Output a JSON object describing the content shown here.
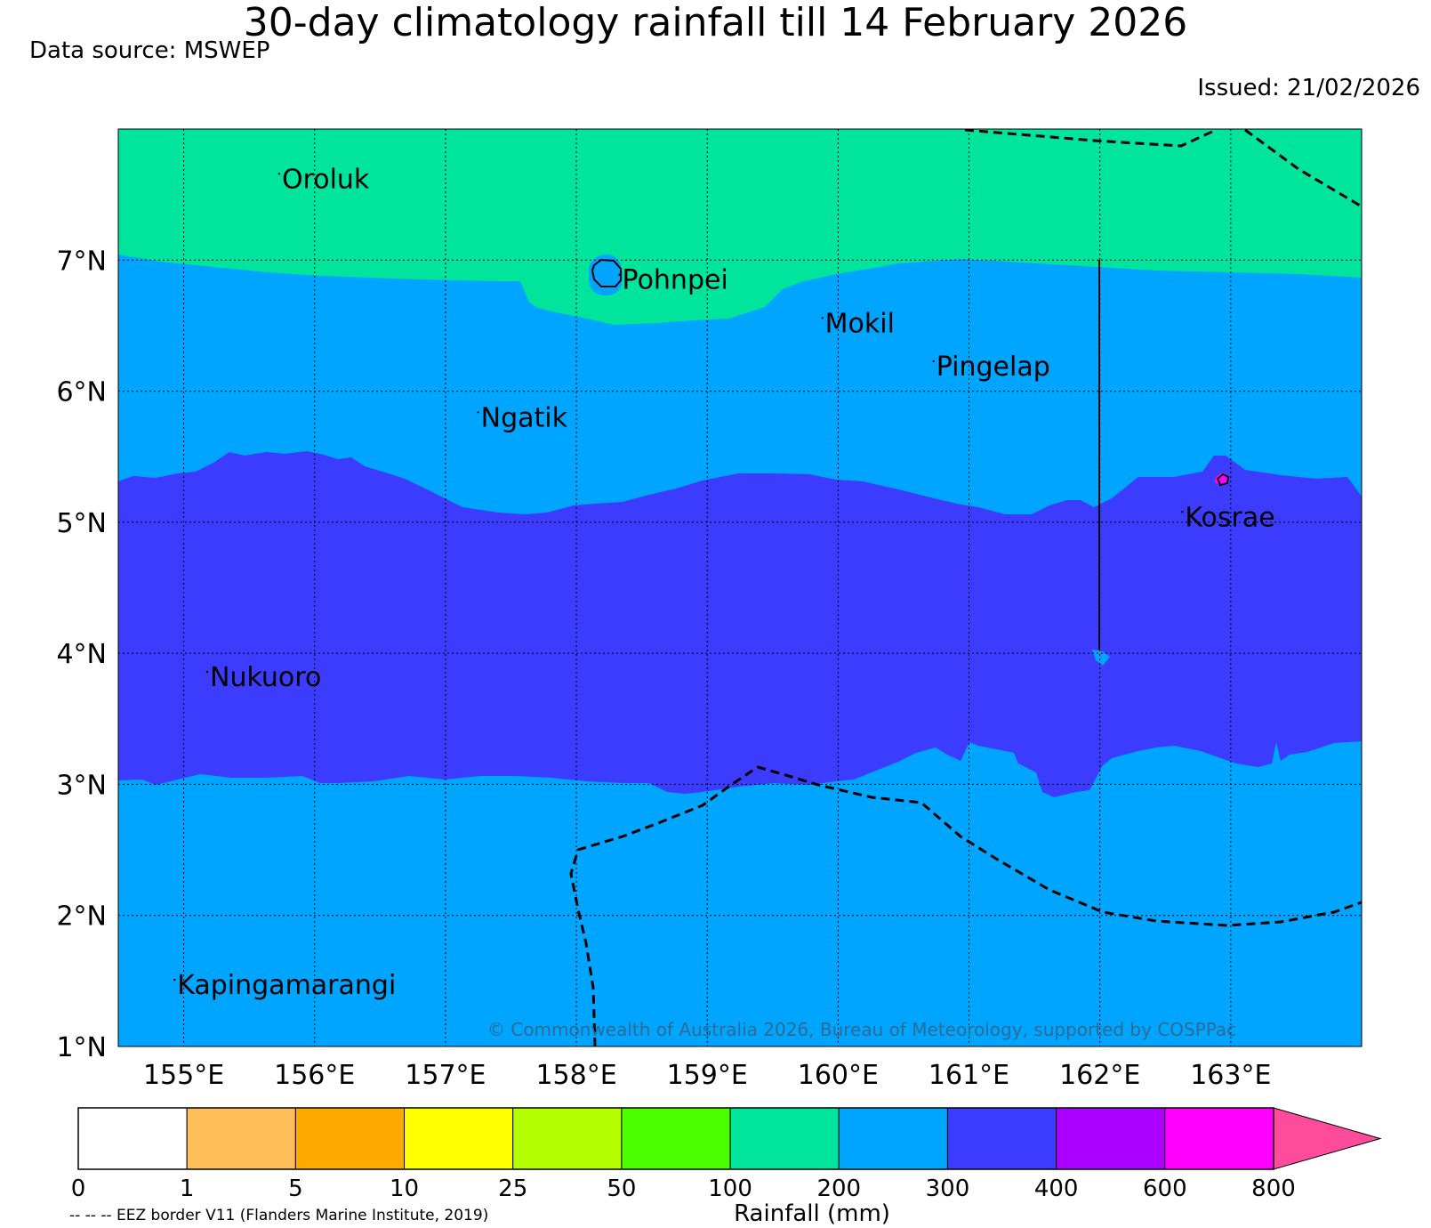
{
  "header": {
    "title": "30-day climatology rainfall till 14 February 2026",
    "source": "Data source: MSWEP",
    "issued": "Issued: 21/02/2026"
  },
  "map": {
    "lon_range": [
      154.5,
      164.0
    ],
    "lat_range": [
      1.0,
      8.0
    ],
    "x_ticks": [
      "155°E",
      "156°E",
      "157°E",
      "158°E",
      "159°E",
      "160°E",
      "161°E",
      "162°E",
      "163°E"
    ],
    "y_ticks": [
      "1°N",
      "2°N",
      "3°N",
      "4°N",
      "5°N",
      "6°N",
      "7°N"
    ],
    "gridlines": true,
    "places": [
      {
        "name": "Oroluk",
        "lon": 155.75,
        "lat": 7.55
      },
      {
        "name": "Pohnpei",
        "lon": 158.35,
        "lat": 6.78
      },
      {
        "name": "Mokil",
        "lon": 159.9,
        "lat": 6.45
      },
      {
        "name": "Pingelap",
        "lon": 160.75,
        "lat": 6.12
      },
      {
        "name": "Ngatik",
        "lon": 157.27,
        "lat": 5.73
      },
      {
        "name": "Kosrae",
        "lon": 162.65,
        "lat": 4.97
      },
      {
        "name": "Nukuoro",
        "lon": 155.2,
        "lat": 3.75
      },
      {
        "name": "Kapingamarangi",
        "lon": 154.95,
        "lat": 1.4
      }
    ],
    "rain_bands": [
      {
        "range": "100-200",
        "color": "#00e59b"
      },
      {
        "range": "200-300",
        "color": "#00a5ff"
      },
      {
        "range": "300-400",
        "color": "#3c3cff"
      },
      {
        "range": "600-800",
        "color": "#ff00ff"
      }
    ],
    "copyright": "© Commonwealth of Australia 2026, Bureau of Meteorology, supported by COSPPac"
  },
  "colorbar": {
    "label": "Rainfall (mm)",
    "ticks": [
      "0",
      "1",
      "5",
      "10",
      "25",
      "50",
      "100",
      "200",
      "300",
      "400",
      "600",
      "800"
    ],
    "colors": [
      "#ffffff",
      "#ffbe5a",
      "#ffaa00",
      "#ffff00",
      "#b4ff00",
      "#4bff00",
      "#00e59b",
      "#00a5ff",
      "#3c3cff",
      "#aa00ff",
      "#ff00ff"
    ],
    "extend_color": "#ff4b9b"
  },
  "footnote": "-- -- -- EEZ border V11 (Flanders Marine Institute, 2019)"
}
